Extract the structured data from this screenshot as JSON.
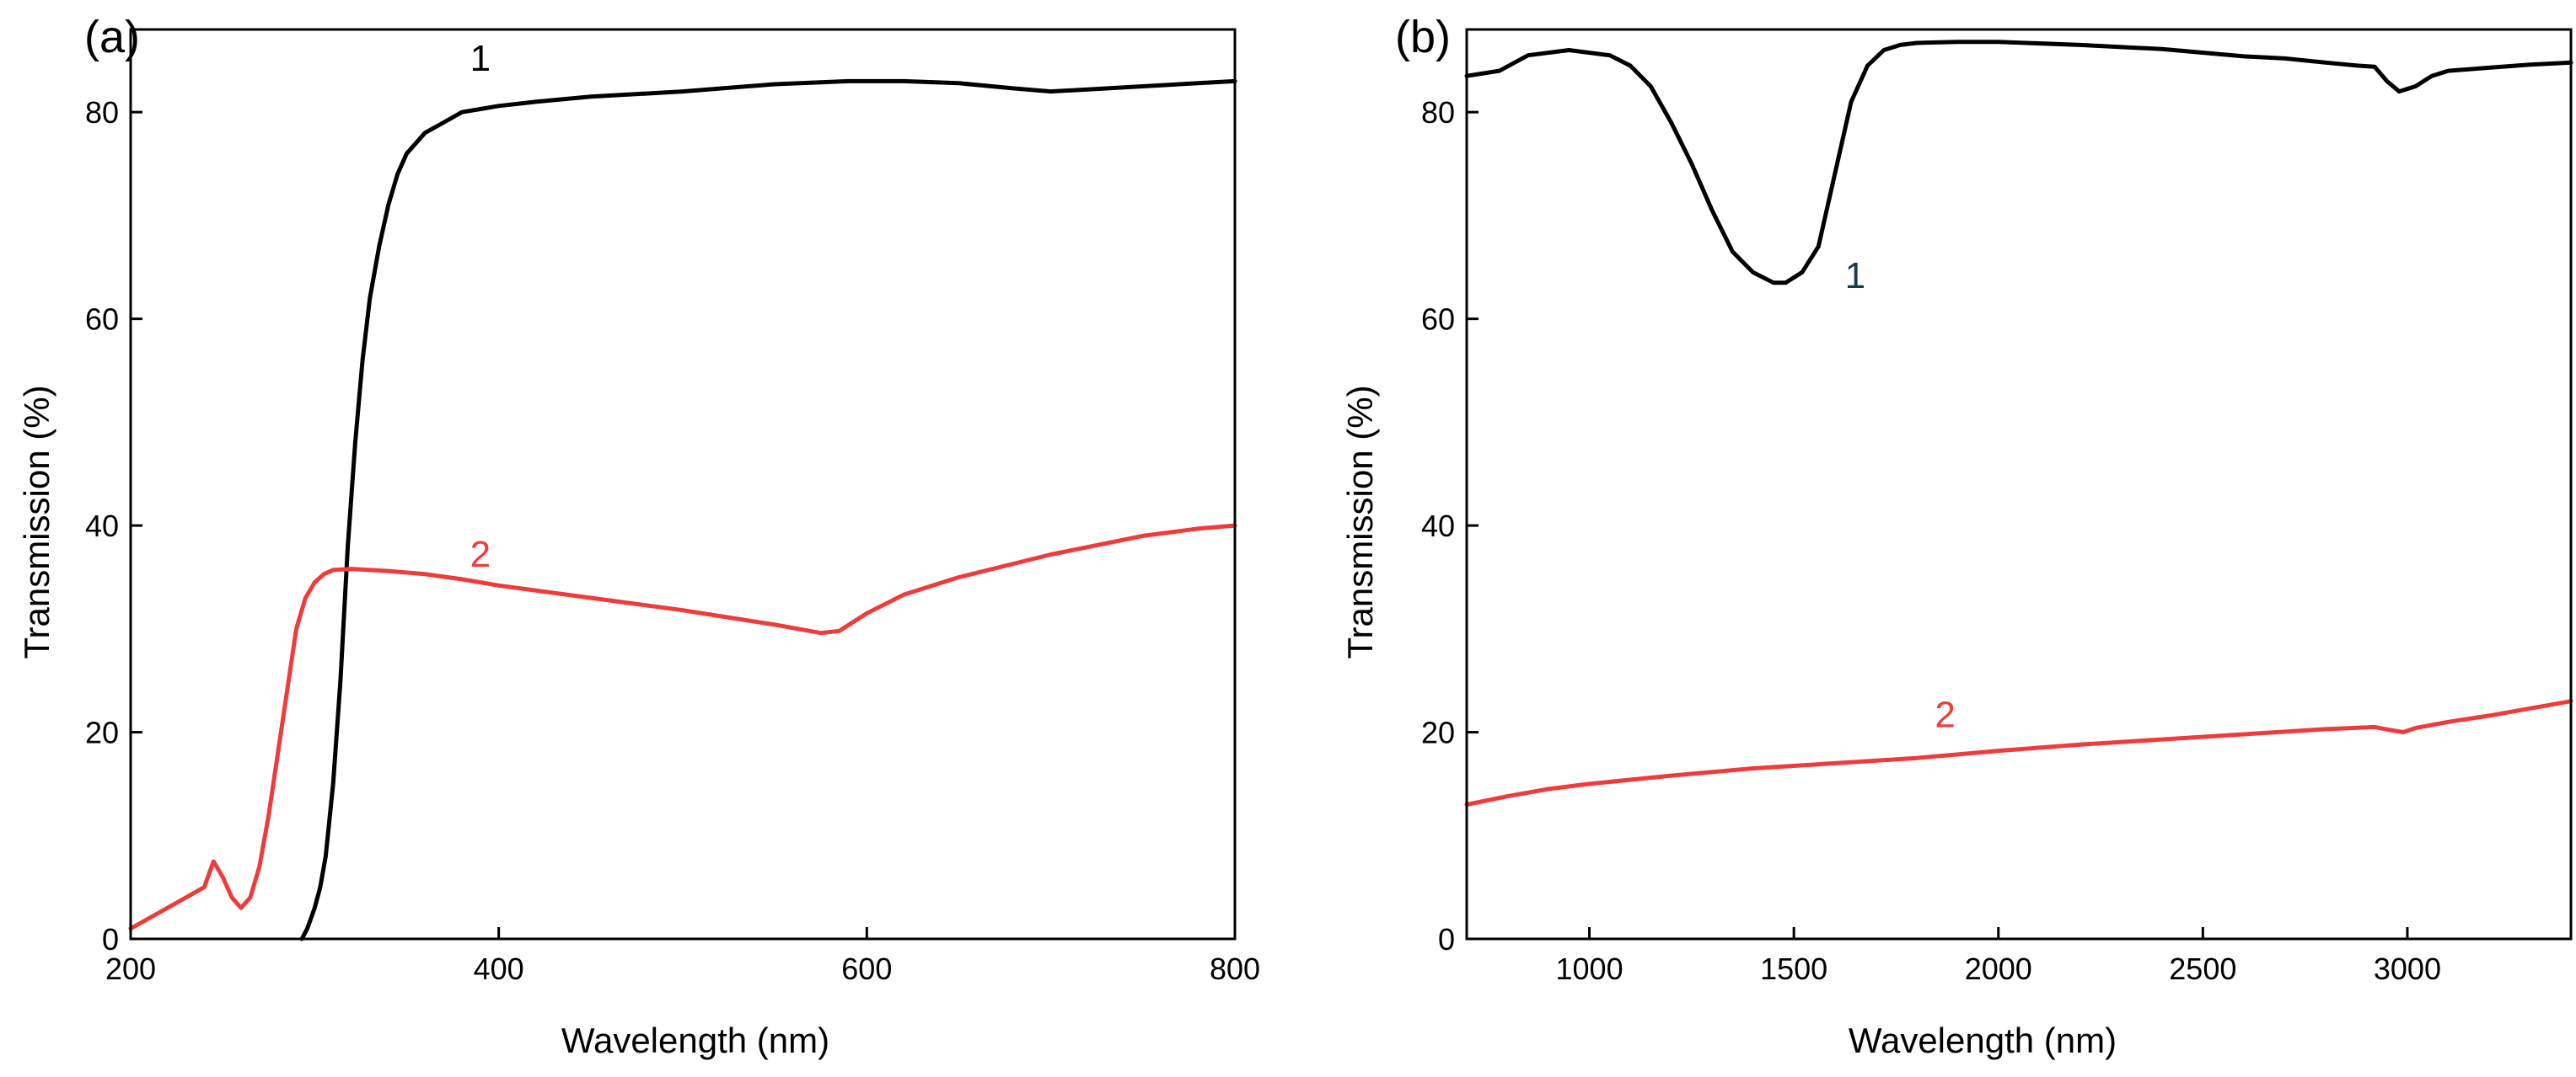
{
  "colors": {
    "series_1": "#000000",
    "series_2": "#ee3b3b",
    "curve_label_1_b": "#1a3a4a"
  },
  "chart_data": [
    {
      "type": "line",
      "panel_label": "(a)",
      "xlabel": "Wavelength (nm)",
      "ylabel": "Transmission (%)",
      "xlim": [
        200,
        800
      ],
      "ylim": [
        0,
        88
      ],
      "xticks": [
        "200",
        "400",
        "600",
        "800"
      ],
      "xtick_values": [
        200,
        400,
        600,
        800
      ],
      "yticks": [
        "0",
        "20",
        "40",
        "60",
        "80"
      ],
      "ytick_values": [
        0,
        20,
        40,
        60,
        80
      ],
      "grid": false,
      "series": [
        {
          "label": "1",
          "label_at": [
            390,
            84
          ],
          "x": [
            293,
            296,
            300,
            303,
            306,
            310,
            314,
            318,
            322,
            326,
            330,
            335,
            340,
            345,
            350,
            360,
            370,
            380,
            390,
            400,
            420,
            450,
            500,
            550,
            590,
            620,
            650,
            680,
            700,
            720,
            750,
            780,
            800
          ],
          "y": [
            0,
            1,
            3,
            5,
            8,
            15,
            25,
            38,
            48,
            56,
            62,
            67,
            71,
            74,
            76,
            78,
            79,
            80,
            80.3,
            80.6,
            81,
            81.5,
            82,
            82.7,
            83,
            83,
            82.8,
            82.3,
            82,
            82.2,
            82.5,
            82.8,
            83
          ]
        },
        {
          "label": "2",
          "label_at": [
            390,
            36
          ],
          "x": [
            200,
            210,
            220,
            230,
            240,
            245,
            250,
            255,
            260,
            265,
            270,
            275,
            280,
            285,
            290,
            295,
            300,
            305,
            310,
            320,
            340,
            360,
            380,
            400,
            450,
            500,
            550,
            575,
            585,
            600,
            620,
            650,
            700,
            750,
            780,
            800
          ],
          "y": [
            1,
            2,
            3,
            4,
            5,
            7.5,
            6,
            4,
            3,
            4,
            7,
            12,
            18,
            24,
            30,
            33,
            34.5,
            35.3,
            35.7,
            35.8,
            35.6,
            35.3,
            34.8,
            34.2,
            33,
            31.8,
            30.4,
            29.6,
            29.8,
            31.5,
            33.3,
            35,
            37.2,
            39,
            39.7,
            40
          ]
        }
      ]
    },
    {
      "type": "line",
      "panel_label": "(b)",
      "xlabel": "Wavelength (nm)",
      "ylabel": "Transmission (%)",
      "xlim": [
        700,
        3400
      ],
      "ylim": [
        0,
        88
      ],
      "xticks": [
        "1000",
        "1500",
        "2000",
        "2500",
        "3000"
      ],
      "xtick_values": [
        1000,
        1500,
        2000,
        2500,
        3000
      ],
      "yticks": [
        "0",
        "20",
        "40",
        "60",
        "80"
      ],
      "yticks_values": [
        0,
        20,
        40,
        60,
        80
      ],
      "ytick_values": [
        0,
        20,
        40,
        60,
        80
      ],
      "grid": false,
      "series": [
        {
          "label": "1",
          "label_at": [
            1650,
            63
          ],
          "x": [
            700,
            780,
            850,
            950,
            1050,
            1100,
            1150,
            1200,
            1250,
            1300,
            1350,
            1400,
            1450,
            1480,
            1520,
            1560,
            1600,
            1640,
            1680,
            1720,
            1760,
            1800,
            1900,
            2000,
            2200,
            2400,
            2600,
            2700,
            2800,
            2880,
            2920,
            2950,
            2980,
            3020,
            3060,
            3100,
            3200,
            3300,
            3400
          ],
          "y": [
            83.5,
            84,
            85.5,
            86,
            85.5,
            84.5,
            82.5,
            79,
            75,
            70.5,
            66.5,
            64.5,
            63.5,
            63.5,
            64.5,
            67,
            74,
            81,
            84.5,
            86,
            86.5,
            86.7,
            86.8,
            86.8,
            86.5,
            86.1,
            85.4,
            85.2,
            84.8,
            84.5,
            84.4,
            83,
            82,
            82.5,
            83.5,
            84,
            84.3,
            84.6,
            84.8
          ]
        },
        {
          "label": "2",
          "label_at": [
            1870,
            20.5
          ],
          "x": [
            700,
            800,
            900,
            1000,
            1200,
            1400,
            1600,
            1800,
            2000,
            2200,
            2400,
            2600,
            2800,
            2920,
            2960,
            2990,
            3020,
            3100,
            3200,
            3300,
            3400
          ],
          "y": [
            13,
            13.8,
            14.5,
            15,
            15.8,
            16.5,
            17,
            17.5,
            18.2,
            18.8,
            19.3,
            19.8,
            20.3,
            20.5,
            20.2,
            20,
            20.4,
            21,
            21.6,
            22.3,
            23
          ]
        }
      ]
    }
  ]
}
